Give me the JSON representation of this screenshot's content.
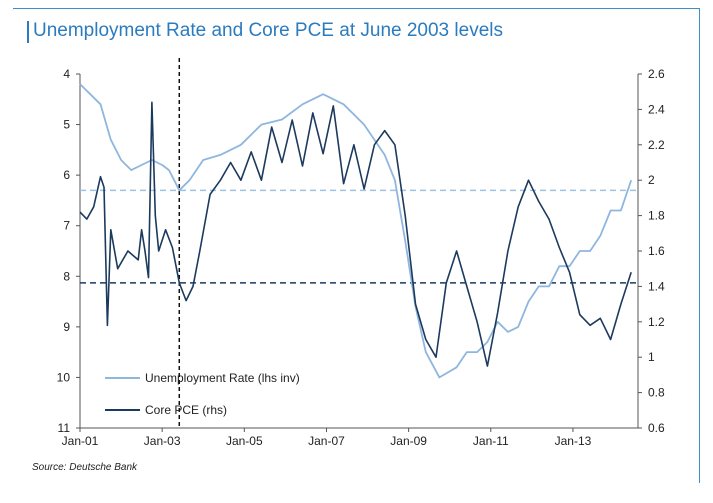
{
  "title": "Unemployment Rate and Core PCE at June 2003 levels",
  "source": "Source: Deutsche Bank",
  "chart_data": {
    "type": "line",
    "x_ticks": [
      "Jan-01",
      "Jan-03",
      "Jan-05",
      "Jan-07",
      "Jan-09",
      "Jan-11",
      "Jan-13"
    ],
    "y_left": {
      "range": [
        4,
        11
      ],
      "inverted": true,
      "ticks": [
        "4",
        "5",
        "6",
        "7",
        "8",
        "9",
        "10",
        "11"
      ]
    },
    "y_right": {
      "range": [
        0.6,
        2.6
      ],
      "ticks": [
        "2.6",
        "2.4",
        "2.2",
        "2",
        "1.8",
        "1.6",
        "1.4",
        "1.2",
        "1",
        "0.8",
        "0.6"
      ]
    },
    "vertical_marker": "2003-06",
    "reference_lines": {
      "unemployment_jun2003": 6.3,
      "core_pce_jun2003": 1.42
    },
    "legend": {
      "placement": "bottom-left"
    },
    "series": [
      {
        "name": "Unemployment Rate (lhs inv)",
        "axis": "left",
        "color": "#8fb6de",
        "points": [
          [
            "2001-01",
            4.2
          ],
          [
            "2001-04",
            4.4
          ],
          [
            "2001-07",
            4.6
          ],
          [
            "2001-10",
            5.3
          ],
          [
            "2002-01",
            5.7
          ],
          [
            "2002-04",
            5.9
          ],
          [
            "2002-07",
            5.8
          ],
          [
            "2002-10",
            5.7
          ],
          [
            "2003-01",
            5.8
          ],
          [
            "2003-03",
            5.9
          ],
          [
            "2003-06",
            6.3
          ],
          [
            "2003-09",
            6.1
          ],
          [
            "2004-01",
            5.7
          ],
          [
            "2004-06",
            5.6
          ],
          [
            "2004-12",
            5.4
          ],
          [
            "2005-06",
            5.0
          ],
          [
            "2005-12",
            4.9
          ],
          [
            "2006-06",
            4.6
          ],
          [
            "2006-12",
            4.4
          ],
          [
            "2007-06",
            4.6
          ],
          [
            "2007-12",
            5.0
          ],
          [
            "2008-06",
            5.6
          ],
          [
            "2008-09",
            6.1
          ],
          [
            "2008-12",
            7.3
          ],
          [
            "2009-03",
            8.6
          ],
          [
            "2009-06",
            9.5
          ],
          [
            "2009-10",
            10.0
          ],
          [
            "2010-03",
            9.8
          ],
          [
            "2010-06",
            9.5
          ],
          [
            "2010-09",
            9.5
          ],
          [
            "2010-12",
            9.3
          ],
          [
            "2011-03",
            8.9
          ],
          [
            "2011-06",
            9.1
          ],
          [
            "2011-09",
            9.0
          ],
          [
            "2011-12",
            8.5
          ],
          [
            "2012-03",
            8.2
          ],
          [
            "2012-06",
            8.2
          ],
          [
            "2012-09",
            7.8
          ],
          [
            "2012-12",
            7.8
          ],
          [
            "2013-03",
            7.5
          ],
          [
            "2013-06",
            7.5
          ],
          [
            "2013-09",
            7.2
          ],
          [
            "2013-12",
            6.7
          ],
          [
            "2014-03",
            6.7
          ],
          [
            "2014-06",
            6.1
          ]
        ]
      },
      {
        "name": "Core PCE (rhs)",
        "axis": "right",
        "color": "#1c3a5e",
        "points": [
          [
            "2001-01",
            1.82
          ],
          [
            "2001-03",
            1.78
          ],
          [
            "2001-05",
            1.85
          ],
          [
            "2001-07",
            2.02
          ],
          [
            "2001-08",
            1.96
          ],
          [
            "2001-09",
            1.18
          ],
          [
            "2001-10",
            1.72
          ],
          [
            "2001-12",
            1.5
          ],
          [
            "2002-03",
            1.6
          ],
          [
            "2002-06",
            1.55
          ],
          [
            "2002-07",
            1.72
          ],
          [
            "2002-08",
            1.6
          ],
          [
            "2002-09",
            1.45
          ],
          [
            "2002-10",
            2.44
          ],
          [
            "2002-11",
            1.8
          ],
          [
            "2002-12",
            1.6
          ],
          [
            "2003-02",
            1.72
          ],
          [
            "2003-04",
            1.62
          ],
          [
            "2003-06",
            1.42
          ],
          [
            "2003-08",
            1.32
          ],
          [
            "2003-10",
            1.4
          ],
          [
            "2003-12",
            1.6
          ],
          [
            "2004-03",
            1.92
          ],
          [
            "2004-06",
            2.0
          ],
          [
            "2004-09",
            2.1
          ],
          [
            "2004-12",
            2.0
          ],
          [
            "2005-03",
            2.16
          ],
          [
            "2005-06",
            2.0
          ],
          [
            "2005-09",
            2.3
          ],
          [
            "2005-12",
            2.1
          ],
          [
            "2006-03",
            2.34
          ],
          [
            "2006-06",
            2.08
          ],
          [
            "2006-09",
            2.38
          ],
          [
            "2006-12",
            2.15
          ],
          [
            "2007-03",
            2.42
          ],
          [
            "2007-06",
            1.98
          ],
          [
            "2007-09",
            2.2
          ],
          [
            "2007-12",
            1.95
          ],
          [
            "2008-03",
            2.2
          ],
          [
            "2008-06",
            2.28
          ],
          [
            "2008-09",
            2.2
          ],
          [
            "2008-12",
            1.8
          ],
          [
            "2009-03",
            1.3
          ],
          [
            "2009-06",
            1.1
          ],
          [
            "2009-09",
            1.0
          ],
          [
            "2009-12",
            1.42
          ],
          [
            "2010-03",
            1.6
          ],
          [
            "2010-06",
            1.4
          ],
          [
            "2010-09",
            1.2
          ],
          [
            "2010-12",
            0.95
          ],
          [
            "2011-03",
            1.25
          ],
          [
            "2011-06",
            1.6
          ],
          [
            "2011-09",
            1.85
          ],
          [
            "2011-12",
            2.0
          ],
          [
            "2012-03",
            1.88
          ],
          [
            "2012-06",
            1.78
          ],
          [
            "2012-09",
            1.62
          ],
          [
            "2012-12",
            1.48
          ],
          [
            "2013-03",
            1.24
          ],
          [
            "2013-06",
            1.18
          ],
          [
            "2013-09",
            1.22
          ],
          [
            "2013-12",
            1.1
          ],
          [
            "2014-03",
            1.3
          ],
          [
            "2014-06",
            1.48
          ]
        ]
      }
    ]
  }
}
